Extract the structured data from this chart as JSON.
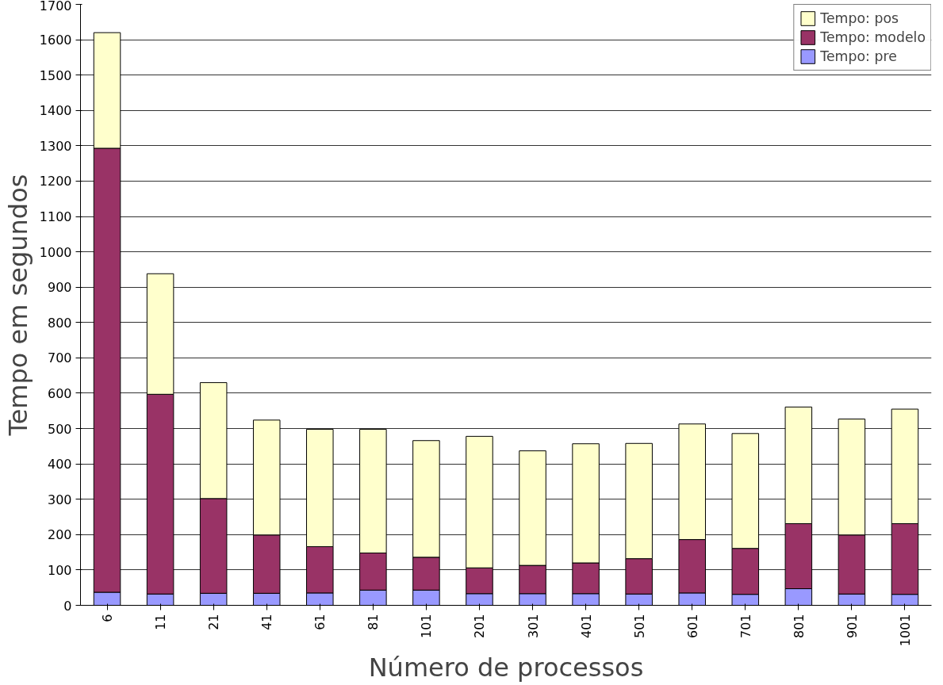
{
  "chart_data": {
    "type": "bar",
    "stacked": true,
    "xlabel": "Número de processos",
    "ylabel": "Tempo em segundos",
    "categories": [
      "6",
      "11",
      "21",
      "41",
      "61",
      "81",
      "101",
      "201",
      "301",
      "401",
      "501",
      "601",
      "701",
      "801",
      "901",
      "1001"
    ],
    "series": [
      {
        "name": "Tempo: pre",
        "color": "#9999ff",
        "values": [
          37,
          32,
          34,
          34,
          35,
          43,
          43,
          33,
          33,
          33,
          32,
          35,
          31,
          47,
          32,
          31
        ]
      },
      {
        "name": "Tempo: modelo",
        "color": "#993366",
        "values": [
          1256,
          565,
          268,
          165,
          131,
          105,
          93,
          73,
          80,
          87,
          100,
          151,
          130,
          184,
          167,
          200
        ]
      },
      {
        "name": "Tempo: pos",
        "color": "#ffffcc",
        "values": [
          327,
          341,
          328,
          325,
          332,
          350,
          330,
          372,
          324,
          337,
          326,
          327,
          325,
          330,
          328,
          324
        ]
      }
    ],
    "ylim": [
      0,
      1700
    ],
    "yticks": [
      0,
      100,
      200,
      300,
      400,
      500,
      600,
      700,
      800,
      900,
      1000,
      1100,
      1200,
      1300,
      1400,
      1500,
      1600,
      1700
    ],
    "grid": "y",
    "legend": "top right"
  }
}
